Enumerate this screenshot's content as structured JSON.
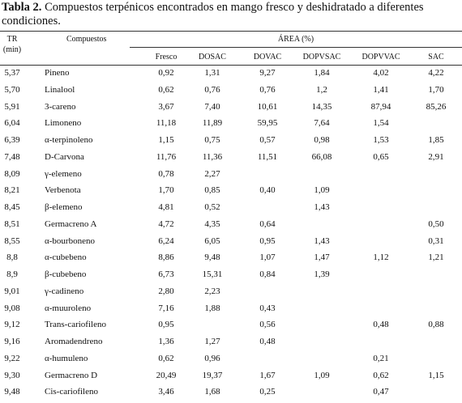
{
  "caption": {
    "label": "Tabla 2.",
    "text": "Compuestos terpénicos encontrados en mango fresco y deshidratado a diferentes condiciones."
  },
  "table": {
    "header": {
      "tr": "TR",
      "tr_unit": "(min)",
      "compound": "Compuestos",
      "area": "ÁREA (%)",
      "columns": [
        "Fresco",
        "DOSAC",
        "DOVAC",
        "DOPVSAC",
        "DOPVVAC",
        "SAC"
      ]
    },
    "rows": [
      [
        "5,37",
        "Pineno",
        "0,92",
        "1,31",
        "9,27",
        "1,84",
        "4,02",
        "4,22"
      ],
      [
        "5,70",
        "Linalool",
        "0,62",
        "0,76",
        "0,76",
        "1,2",
        "1,41",
        "1,70"
      ],
      [
        "5,91",
        "3-careno",
        "3,67",
        "7,40",
        "10,61",
        "14,35",
        "87,94",
        "85,26"
      ],
      [
        "6,04",
        "Limoneno",
        "11,18",
        "11,89",
        "59,95",
        "7,64",
        "1,54",
        null
      ],
      [
        "6,39",
        "α-terpinoleno",
        "1,15",
        "0,75",
        "0,57",
        "0,98",
        "1,53",
        "1,85"
      ],
      [
        "7,48",
        "D-Carvona",
        "11,76",
        "11,36",
        "11,51",
        "66,08",
        "0,65",
        "2,91"
      ],
      [
        "8,09",
        "γ-elemeno",
        "0,78",
        "2,27",
        null,
        null,
        null,
        null
      ],
      [
        "8,21",
        "Verbenota",
        "1,70",
        "0,85",
        "0,40",
        "1,09",
        null,
        null
      ],
      [
        "8,45",
        "β-elemeno",
        "4,81",
        "0,52",
        null,
        "1,43",
        null,
        null
      ],
      [
        "8,51",
        "Germacreno A",
        "4,72",
        "4,35",
        "0,64",
        null,
        null,
        "0,50"
      ],
      [
        "8,55",
        "α-bourboneno",
        "6,24",
        "6,05",
        "0,95",
        "1,43",
        null,
        "0,31"
      ],
      [
        "8,8",
        "α-cubebeno",
        "8,86",
        "9,48",
        "1,07",
        "1,47",
        "1,12",
        "1,21"
      ],
      [
        "8,9",
        "β-cubebeno",
        "6,73",
        "15,31",
        "0,84",
        "1,39",
        null,
        null
      ],
      [
        "9,01",
        "γ-cadineno",
        "2,80",
        "2,23",
        null,
        null,
        null,
        null
      ],
      [
        "9,08",
        "α-muuroleno",
        "7,16",
        "1,88",
        "0,43",
        null,
        null,
        null
      ],
      [
        "9,12",
        "Trans-cariofileno",
        "0,95",
        null,
        "0,56",
        null,
        "0,48",
        "0,88"
      ],
      [
        "9,16",
        "Aromadendreno",
        "1,36",
        "1,27",
        "0,48",
        null,
        null,
        null
      ],
      [
        "9,22",
        "α-humuleno",
        "0,62",
        "0,96",
        null,
        null,
        "0,21",
        null
      ],
      [
        "9,30",
        "Germacreno D",
        "20,49",
        "19,37",
        "1,67",
        "1,09",
        "0,62",
        "1,15"
      ],
      [
        "9,48",
        "Cis-cariofileno",
        "3,46",
        "1,68",
        "0,25",
        null,
        "0,47",
        null
      ]
    ]
  }
}
